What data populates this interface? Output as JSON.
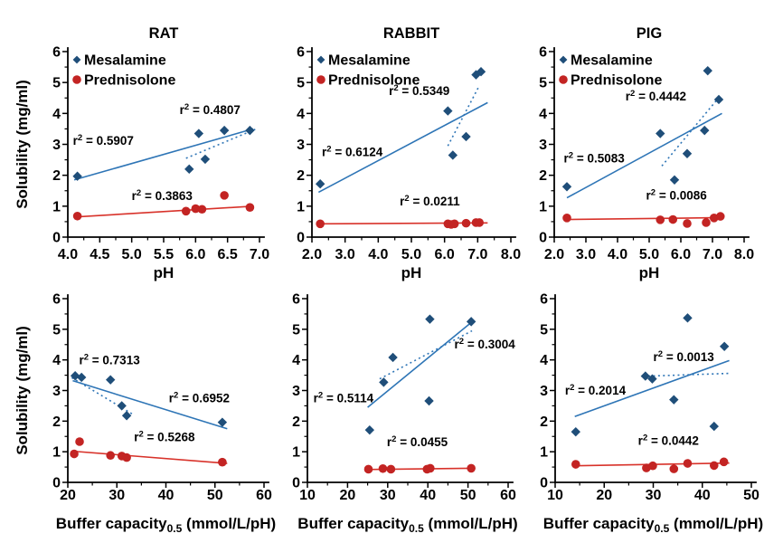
{
  "figure": {
    "colors": {
      "mesalamine": {
        "marker": "#1f4e79",
        "line": "#2e75b6"
      },
      "prednisolone": {
        "marker": "#c32423",
        "line": "#d8322a"
      },
      "axis": "#000000",
      "annotation_black": "#000000",
      "background": "#ffffff"
    },
    "legend": {
      "items": [
        {
          "label": "Mesalamine",
          "marker": "diamond",
          "key": "mesalamine"
        },
        {
          "label": "Prednisolone",
          "marker": "circle",
          "key": "prednisolone"
        }
      ]
    },
    "ylabel": "Solubility (mg/ml)"
  },
  "chart_data": [
    {
      "type": "scatter",
      "slug": "panel-rat-ph",
      "title": "RAT",
      "ylabel": "Solubility (mg/ml)",
      "xlabel_main": "pH",
      "xlabel_sub": "",
      "xlabel_unit": "",
      "xlim": [
        4.0,
        7.0
      ],
      "xticks": [
        4.0,
        4.5,
        5.0,
        5.5,
        6.0,
        6.5,
        7.0
      ],
      "xtick_decimals": 1,
      "ylim": [
        0,
        6
      ],
      "yticks": [
        0,
        1,
        2,
        3,
        4,
        5,
        6
      ],
      "show_legend": true,
      "series": [
        {
          "name": "Mesalamine",
          "key": "mesalamine",
          "marker": "diamond",
          "points": [
            [
              4.15,
              1.97
            ],
            [
              5.9,
              2.2
            ],
            [
              6.05,
              3.35
            ],
            [
              6.15,
              2.52
            ],
            [
              6.45,
              3.45
            ],
            [
              6.85,
              3.45
            ]
          ],
          "trendlines": [
            {
              "style": "solid",
              "x1": 4.1,
              "y1": 1.85,
              "x2": 6.9,
              "y2": 3.5,
              "r2": {
                "value": "0.5907",
                "x": 4.08,
                "y": 2.98,
                "color": "black"
              }
            },
            {
              "style": "dotted",
              "x1": 5.85,
              "y1": 2.55,
              "x2": 6.95,
              "y2": 3.5,
              "r2": {
                "value": "0.4807",
                "x": 5.75,
                "y": 3.98,
                "color": "blue"
              }
            }
          ]
        },
        {
          "name": "Prednisolone",
          "key": "prednisolone",
          "marker": "circle",
          "points": [
            [
              4.15,
              0.68
            ],
            [
              5.85,
              0.84
            ],
            [
              6.0,
              0.92
            ],
            [
              6.1,
              0.9
            ],
            [
              6.45,
              1.35
            ],
            [
              6.85,
              0.96
            ]
          ],
          "trendlines": [
            {
              "style": "solid",
              "x1": 4.1,
              "y1": 0.65,
              "x2": 6.9,
              "y2": 1.0,
              "r2": {
                "value": "0.3863",
                "x": 5.0,
                "y": 1.2,
                "color": "red"
              }
            }
          ]
        }
      ]
    },
    {
      "type": "scatter",
      "slug": "panel-rabbit-ph",
      "title": "RABBIT",
      "ylabel": "",
      "xlabel_main": "pH",
      "xlabel_sub": "",
      "xlabel_unit": "",
      "xlim": [
        2.0,
        8.0
      ],
      "xticks": [
        2.0,
        3.0,
        4.0,
        5.0,
        6.0,
        7.0,
        8.0
      ],
      "xtick_decimals": 1,
      "ylim": [
        0,
        6
      ],
      "yticks": [
        0,
        1,
        2,
        3,
        4,
        5,
        6
      ],
      "show_legend": true,
      "series": [
        {
          "name": "Mesalamine",
          "key": "mesalamine",
          "marker": "diamond",
          "points": [
            [
              2.25,
              1.72
            ],
            [
              6.1,
              4.08
            ],
            [
              6.25,
              2.65
            ],
            [
              6.65,
              3.25
            ],
            [
              6.95,
              5.25
            ],
            [
              7.1,
              5.35
            ]
          ],
          "trendlines": [
            {
              "style": "solid",
              "x1": 2.2,
              "y1": 1.45,
              "x2": 7.3,
              "y2": 4.35,
              "r2": {
                "value": "0.6124",
                "x": 2.3,
                "y": 2.62,
                "color": "black"
              }
            },
            {
              "style": "dotted",
              "x1": 6.1,
              "y1": 2.95,
              "x2": 7.05,
              "y2": 4.9,
              "r2": {
                "value": "0.5349",
                "x": 4.32,
                "y": 4.6,
                "color": "blue"
              }
            }
          ]
        },
        {
          "name": "Prednisolone",
          "key": "prednisolone",
          "marker": "circle",
          "points": [
            [
              2.25,
              0.43
            ],
            [
              6.1,
              0.43
            ],
            [
              6.2,
              0.41
            ],
            [
              6.3,
              0.43
            ],
            [
              6.65,
              0.45
            ],
            [
              6.95,
              0.47
            ],
            [
              7.05,
              0.47
            ]
          ],
          "trendlines": [
            {
              "style": "solid",
              "x1": 2.2,
              "y1": 0.43,
              "x2": 7.3,
              "y2": 0.46,
              "r2": {
                "value": "0.0211",
                "x": 4.65,
                "y": 1.03,
                "color": "red"
              }
            }
          ]
        }
      ]
    },
    {
      "type": "scatter",
      "slug": "panel-pig-ph",
      "title": "PIG",
      "ylabel": "",
      "xlabel_main": "pH",
      "xlabel_sub": "",
      "xlabel_unit": "",
      "xlim": [
        2.0,
        8.0
      ],
      "xticks": [
        2.0,
        3.0,
        4.0,
        5.0,
        6.0,
        7.0,
        8.0
      ],
      "xtick_decimals": 1,
      "ylim": [
        0,
        6
      ],
      "yticks": [
        0,
        1,
        2,
        3,
        4,
        5,
        6
      ],
      "show_legend": true,
      "series": [
        {
          "name": "Mesalamine",
          "key": "mesalamine",
          "marker": "diamond",
          "points": [
            [
              2.4,
              1.63
            ],
            [
              5.35,
              3.35
            ],
            [
              5.8,
              1.85
            ],
            [
              6.2,
              2.7
            ],
            [
              6.75,
              3.45
            ],
            [
              6.85,
              5.38
            ],
            [
              7.2,
              4.45
            ]
          ],
          "trendlines": [
            {
              "style": "solid",
              "x1": 2.4,
              "y1": 1.27,
              "x2": 7.3,
              "y2": 4.0,
              "r2": {
                "value": "0.5083",
                "x": 2.3,
                "y": 2.42,
                "color": "black"
              }
            },
            {
              "style": "dotted",
              "x1": 5.4,
              "y1": 2.3,
              "x2": 7.15,
              "y2": 4.45,
              "r2": {
                "value": "0.4442",
                "x": 4.25,
                "y": 4.42,
                "color": "blue"
              }
            }
          ]
        },
        {
          "name": "Prednisolone",
          "key": "prednisolone",
          "marker": "circle",
          "points": [
            [
              2.4,
              0.62
            ],
            [
              5.35,
              0.56
            ],
            [
              5.75,
              0.57
            ],
            [
              6.2,
              0.44
            ],
            [
              6.8,
              0.47
            ],
            [
              7.05,
              0.62
            ],
            [
              7.25,
              0.67
            ]
          ],
          "trendlines": [
            {
              "style": "solid",
              "x1": 2.4,
              "y1": 0.57,
              "x2": 7.3,
              "y2": 0.63,
              "r2": {
                "value": "0.0086",
                "x": 4.9,
                "y": 1.22,
                "color": "red"
              }
            }
          ]
        }
      ]
    },
    {
      "type": "scatter",
      "slug": "panel-rat-buffer-capacity",
      "title": "",
      "ylabel": "Solubility (mg/ml)",
      "xlabel_main": "Buffer capacity",
      "xlabel_sub": "0.5",
      "xlabel_unit": " (mmol/L/pH)",
      "xlim": [
        20,
        60
      ],
      "xticks": [
        20,
        30,
        40,
        50,
        60
      ],
      "xtick_decimals": 0,
      "ylim": [
        0,
        6
      ],
      "yticks": [
        0,
        1,
        2,
        3,
        4,
        5,
        6
      ],
      "show_legend": false,
      "series": [
        {
          "name": "Mesalamine",
          "key": "mesalamine",
          "marker": "diamond",
          "points": [
            [
              21.5,
              3.48
            ],
            [
              22.8,
              3.43
            ],
            [
              28.7,
              3.35
            ],
            [
              31.0,
              2.5
            ],
            [
              32.0,
              2.18
            ],
            [
              51.5,
              1.96
            ]
          ],
          "trendlines": [
            {
              "style": "solid",
              "x1": 21.0,
              "y1": 3.32,
              "x2": 52.5,
              "y2": 1.75,
              "r2": {
                "value": "0.6952",
                "x": 40.6,
                "y": 2.62,
                "color": "black"
              }
            },
            {
              "style": "dotted",
              "x1": 20.8,
              "y1": 3.42,
              "x2": 33.5,
              "y2": 2.2,
              "r2": {
                "value": "0.7313",
                "x": 22.3,
                "y": 3.85,
                "color": "blue"
              }
            }
          ]
        },
        {
          "name": "Prednisolone",
          "key": "prednisolone",
          "marker": "circle",
          "points": [
            [
              21.3,
              0.93
            ],
            [
              22.4,
              1.33
            ],
            [
              28.7,
              0.88
            ],
            [
              31.0,
              0.86
            ],
            [
              32.0,
              0.81
            ],
            [
              51.5,
              0.66
            ]
          ],
          "trendlines": [
            {
              "style": "solid",
              "x1": 20.8,
              "y1": 1.02,
              "x2": 52.5,
              "y2": 0.62,
              "r2": {
                "value": "0.5268",
                "x": 33.5,
                "y": 1.35,
                "color": "red"
              }
            }
          ]
        }
      ]
    },
    {
      "type": "scatter",
      "slug": "panel-rabbit-buffer-capacity",
      "title": "",
      "ylabel": "",
      "xlabel_main": "Buffer capacity",
      "xlabel_sub": "0.5",
      "xlabel_unit": " (mmol/L/pH)",
      "xlim": [
        10,
        60
      ],
      "xticks": [
        10,
        20,
        30,
        40,
        50,
        60
      ],
      "xtick_decimals": 0,
      "ylim": [
        0,
        6
      ],
      "yticks": [
        0,
        1,
        2,
        3,
        4,
        5,
        6
      ],
      "show_legend": false,
      "series": [
        {
          "name": "Mesalamine",
          "key": "mesalamine",
          "marker": "diamond",
          "points": [
            [
              25.5,
              1.71
            ],
            [
              29.0,
              3.27
            ],
            [
              31.3,
              4.08
            ],
            [
              40.3,
              2.66
            ],
            [
              40.5,
              5.33
            ],
            [
              50.8,
              5.25
            ]
          ],
          "trendlines": [
            {
              "style": "solid",
              "x1": 25.0,
              "y1": 2.45,
              "x2": 50.8,
              "y2": 5.22,
              "r2": {
                "value": "0.5114",
                "x": 11.5,
                "y": 2.62,
                "color": "black"
              }
            },
            {
              "style": "dotted",
              "x1": 28.0,
              "y1": 3.38,
              "x2": 51.0,
              "y2": 4.95,
              "r2": {
                "value": "0.3004",
                "x": 46.6,
                "y": 4.38,
                "color": "blue"
              }
            }
          ]
        },
        {
          "name": "Prednisolone",
          "key": "prednisolone",
          "marker": "circle",
          "points": [
            [
              25.2,
              0.43
            ],
            [
              28.8,
              0.45
            ],
            [
              30.8,
              0.43
            ],
            [
              39.8,
              0.43
            ],
            [
              40.6,
              0.46
            ],
            [
              50.8,
              0.46
            ]
          ],
          "trendlines": [
            {
              "style": "solid",
              "x1": 24.5,
              "y1": 0.42,
              "x2": 51.0,
              "y2": 0.46,
              "r2": {
                "value": "0.0455",
                "x": 29.8,
                "y": 1.18,
                "color": "red"
              }
            }
          ]
        }
      ]
    },
    {
      "type": "scatter",
      "slug": "panel-pig-buffer-capacity",
      "title": "",
      "ylabel": "",
      "xlabel_main": "Buffer capacity",
      "xlabel_sub": "0.5",
      "xlabel_unit": " (mmol/L/pH)",
      "xlim": [
        10,
        50
      ],
      "xticks": [
        10,
        20,
        30,
        40,
        50
      ],
      "xtick_decimals": 0,
      "ylim": [
        0,
        6
      ],
      "yticks": [
        0,
        1,
        2,
        3,
        4,
        5,
        6
      ],
      "show_legend": false,
      "series": [
        {
          "name": "Mesalamine",
          "key": "mesalamine",
          "marker": "diamond",
          "points": [
            [
              14.2,
              1.65
            ],
            [
              28.4,
              3.47
            ],
            [
              29.8,
              3.38
            ],
            [
              34.2,
              2.7
            ],
            [
              37.0,
              5.37
            ],
            [
              42.4,
              1.83
            ],
            [
              44.5,
              4.44
            ]
          ],
          "trendlines": [
            {
              "style": "solid",
              "x1": 14.0,
              "y1": 2.15,
              "x2": 45.5,
              "y2": 3.98,
              "r2": {
                "value": "0.2014",
                "x": 12.0,
                "y": 2.86,
                "color": "black"
              }
            },
            {
              "style": "dotted",
              "x1": 29.0,
              "y1": 3.47,
              "x2": 45.5,
              "y2": 3.56,
              "r2": {
                "value": "0.0013",
                "x": 30.0,
                "y": 3.96,
                "color": "blue"
              }
            }
          ]
        },
        {
          "name": "Prednisolone",
          "key": "prednisolone",
          "marker": "circle",
          "points": [
            [
              14.2,
              0.59
            ],
            [
              28.6,
              0.47
            ],
            [
              29.9,
              0.54
            ],
            [
              34.2,
              0.44
            ],
            [
              37.0,
              0.62
            ],
            [
              42.4,
              0.55
            ],
            [
              44.4,
              0.67
            ]
          ],
          "trendlines": [
            {
              "style": "solid",
              "x1": 13.5,
              "y1": 0.54,
              "x2": 45.5,
              "y2": 0.63,
              "r2": {
                "value": "0.0442",
                "x": 26.9,
                "y": 1.23,
                "color": "red"
              }
            }
          ]
        }
      ]
    }
  ]
}
